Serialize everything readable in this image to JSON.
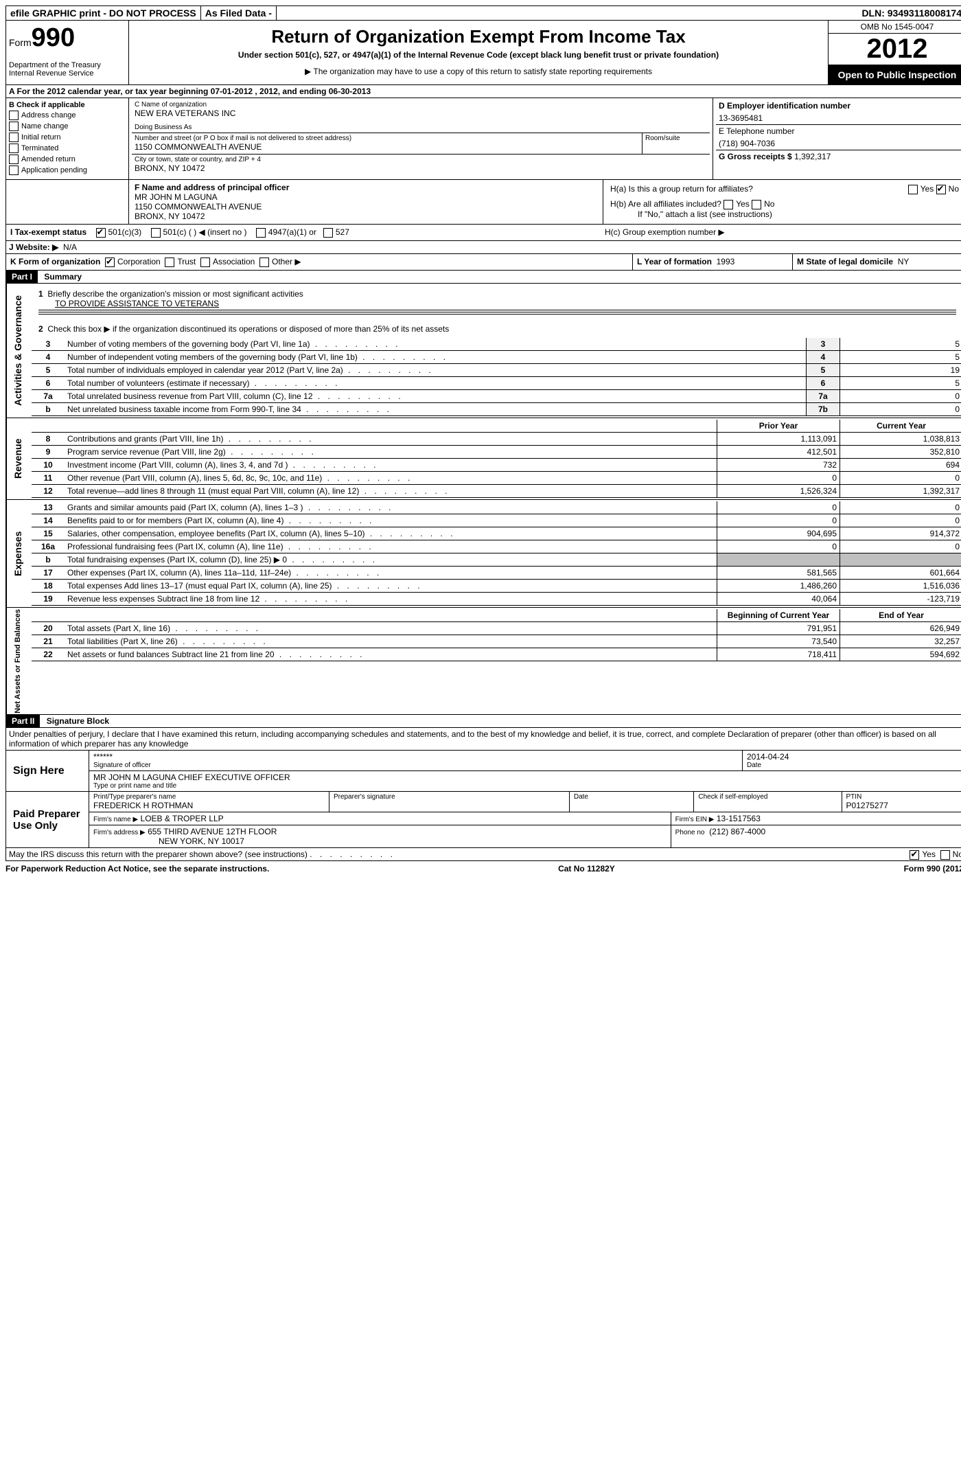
{
  "top": {
    "efile": "efile GRAPHIC print - DO NOT PROCESS",
    "asfiled": "As Filed Data -",
    "dln_label": "DLN:",
    "dln": "93493118008174"
  },
  "header": {
    "form_label": "Form",
    "form_number": "990",
    "dept": "Department of the Treasury",
    "irs": "Internal Revenue Service",
    "title": "Return of Organization Exempt From Income Tax",
    "subtitle": "Under section 501(c), 527, or 4947(a)(1) of the Internal Revenue Code (except black lung benefit trust or private foundation)",
    "note": "The organization may have to use a copy of this return to satisfy state reporting requirements",
    "omb": "OMB No 1545-0047",
    "year": "2012",
    "open": "Open to Public Inspection"
  },
  "line_a": "A  For the 2012 calendar year, or tax year beginning 07-01-2012    , 2012, and ending 06-30-2013",
  "section_b": {
    "label": "B  Check if applicable",
    "items": [
      "Address change",
      "Name change",
      "Initial return",
      "Terminated",
      "Amended return",
      "Application pending"
    ]
  },
  "section_c": {
    "name_label": "C Name of organization",
    "name": "NEW ERA VETERANS INC",
    "dba_label": "Doing Business As",
    "dba": "",
    "street_label": "Number and street (or P O  box if mail is not delivered to street address)",
    "room_label": "Room/suite",
    "street": "1150 COMMONWEALTH AVENUE",
    "city_label": "City or town, state or country, and ZIP + 4",
    "city": "BRONX, NY  10472"
  },
  "section_d": {
    "label": "D Employer identification number",
    "value": "13-3695481"
  },
  "section_e": {
    "label": "E Telephone number",
    "value": "(718) 904-7036"
  },
  "section_g": {
    "label": "G Gross receipts $",
    "value": "1,392,317"
  },
  "section_f": {
    "label": "F  Name and address of principal officer",
    "name": "MR JOHN M LAGUNA",
    "street": "1150 COMMONWEALTH AVENUE",
    "city": "BRONX, NY  10472"
  },
  "section_h": {
    "ha": "H(a)  Is this a group return for affiliates?",
    "hb": "H(b)  Are all affiliates included?",
    "hb_note": "If \"No,\" attach a list  (see instructions)",
    "hc": "H(c)   Group exemption number ▶",
    "yes": "Yes",
    "no": "No"
  },
  "section_i": {
    "label": "I   Tax-exempt status",
    "c3": "501(c)(3)",
    "c": "501(c) (  ) ◀ (insert no )",
    "a1": "4947(a)(1) or",
    "s527": "527"
  },
  "section_j": {
    "label": "J  Website: ▶",
    "value": "N/A"
  },
  "section_k": {
    "label": "K Form of organization",
    "corp": "Corporation",
    "trust": "Trust",
    "assoc": "Association",
    "other": "Other ▶"
  },
  "section_l": {
    "label": "L Year of formation",
    "value": "1993"
  },
  "section_m": {
    "label": "M State of legal domicile",
    "value": "NY"
  },
  "part1": {
    "hdr": "Part I",
    "title": "Summary",
    "side1": "Activities & Governance",
    "side2": "Revenue",
    "side3": "Expenses",
    "side4": "Net Assets or Fund Balances",
    "l1": "Briefly describe the organization's mission or most significant activities",
    "l1v": "TO PROVIDE ASSISTANCE TO VETERANS",
    "l2": "Check this box ▶       if the organization discontinued its operations or disposed of more than 25% of its net assets",
    "rows_top": [
      {
        "n": "3",
        "t": "Number of voting members of the governing body (Part VI, line 1a)",
        "b": "3",
        "v": "5"
      },
      {
        "n": "4",
        "t": "Number of independent voting members of the governing body (Part VI, line 1b)",
        "b": "4",
        "v": "5"
      },
      {
        "n": "5",
        "t": "Total number of individuals employed in calendar year 2012 (Part V, line 2a)",
        "b": "5",
        "v": "19"
      },
      {
        "n": "6",
        "t": "Total number of volunteers (estimate if necessary)",
        "b": "6",
        "v": "5"
      },
      {
        "n": "7a",
        "t": "Total unrelated business revenue from Part VIII, column (C), line 12",
        "b": "7a",
        "v": "0"
      },
      {
        "n": "b",
        "t": "Net unrelated business taxable income from Form 990-T, line 34",
        "b": "7b",
        "v": "0"
      }
    ],
    "col_prior": "Prior Year",
    "col_current": "Current Year",
    "rows_rev": [
      {
        "n": "8",
        "t": "Contributions and grants (Part VIII, line 1h)",
        "p": "1,113,091",
        "c": "1,038,813"
      },
      {
        "n": "9",
        "t": "Program service revenue (Part VIII, line 2g)",
        "p": "412,501",
        "c": "352,810"
      },
      {
        "n": "10",
        "t": "Investment income (Part VIII, column (A), lines 3, 4, and 7d )",
        "p": "732",
        "c": "694"
      },
      {
        "n": "11",
        "t": "Other revenue (Part VIII, column (A), lines 5, 6d, 8c, 9c, 10c, and 11e)",
        "p": "0",
        "c": "0"
      },
      {
        "n": "12",
        "t": "Total revenue—add lines 8 through 11 (must equal Part VIII, column (A), line 12)",
        "p": "1,526,324",
        "c": "1,392,317"
      }
    ],
    "rows_exp": [
      {
        "n": "13",
        "t": "Grants and similar amounts paid (Part IX, column (A), lines 1–3 )",
        "p": "0",
        "c": "0"
      },
      {
        "n": "14",
        "t": "Benefits paid to or for members (Part IX, column (A), line 4)",
        "p": "0",
        "c": "0"
      },
      {
        "n": "15",
        "t": "Salaries, other compensation, employee benefits (Part IX, column (A), lines 5–10)",
        "p": "904,695",
        "c": "914,372"
      },
      {
        "n": "16a",
        "t": "Professional fundraising fees (Part IX, column (A), line 11e)",
        "p": "0",
        "c": "0"
      },
      {
        "n": "b",
        "t": "Total fundraising expenses (Part IX, column (D), line 25) ▶ 0",
        "p": "",
        "c": ""
      },
      {
        "n": "17",
        "t": "Other expenses (Part IX, column (A), lines 11a–11d, 11f–24e)",
        "p": "581,565",
        "c": "601,664"
      },
      {
        "n": "18",
        "t": "Total expenses  Add lines 13–17 (must equal Part IX, column (A), line 25)",
        "p": "1,486,260",
        "c": "1,516,036"
      },
      {
        "n": "19",
        "t": "Revenue less expenses  Subtract line 18 from line 12",
        "p": "40,064",
        "c": "-123,719"
      }
    ],
    "col_beg": "Beginning of Current Year",
    "col_end": "End of Year",
    "rows_net": [
      {
        "n": "20",
        "t": "Total assets (Part X, line 16)",
        "p": "791,951",
        "c": "626,949"
      },
      {
        "n": "21",
        "t": "Total liabilities (Part X, line 26)",
        "p": "73,540",
        "c": "32,257"
      },
      {
        "n": "22",
        "t": "Net assets or fund balances  Subtract line 21 from line 20",
        "p": "718,411",
        "c": "594,692"
      }
    ]
  },
  "part2": {
    "hdr": "Part II",
    "title": "Signature Block",
    "decl": "Under penalties of perjury, I declare that I have examined this return, including accompanying schedules and statements, and to the best of my knowledge and belief, it is true, correct, and complete  Declaration of preparer (other than officer) is based on all information of which preparer has any knowledge",
    "sign_here": "Sign Here",
    "sig_stars": "******",
    "sig_officer": "Signature of officer",
    "sig_date": "2014-04-24",
    "date_label": "Date",
    "name_title": "MR JOHN M LAGUNA CHIEF EXECUTIVE OFFICER",
    "name_title_label": "Type or print name and title",
    "paid": "Paid Preparer Use Only",
    "prep_name_label": "Print/Type preparer's name",
    "prep_name": "FREDERICK H ROTHMAN",
    "prep_sig_label": "Preparer's signature",
    "prep_date_label": "Date",
    "self_emp": "Check        if self-employed",
    "ptin_label": "PTIN",
    "ptin": "P01275277",
    "firm_name_label": "Firm's name   ▶",
    "firm_name": "LOEB & TROPER LLP",
    "firm_ein_label": "Firm's EIN ▶",
    "firm_ein": "13-1517563",
    "firm_addr_label": "Firm's address ▶",
    "firm_addr1": "655 THIRD AVENUE 12TH FLOOR",
    "firm_addr2": "NEW YORK, NY  10017",
    "firm_phone_label": "Phone no",
    "firm_phone": "(212) 867-4000",
    "discuss": "May the IRS discuss this return with the preparer shown above? (see instructions)",
    "yes": "Yes",
    "no": "No"
  },
  "footer": {
    "left": "For Paperwork Reduction Act Notice, see the separate instructions.",
    "mid": "Cat No 11282Y",
    "right": "Form 990 (2012)"
  }
}
